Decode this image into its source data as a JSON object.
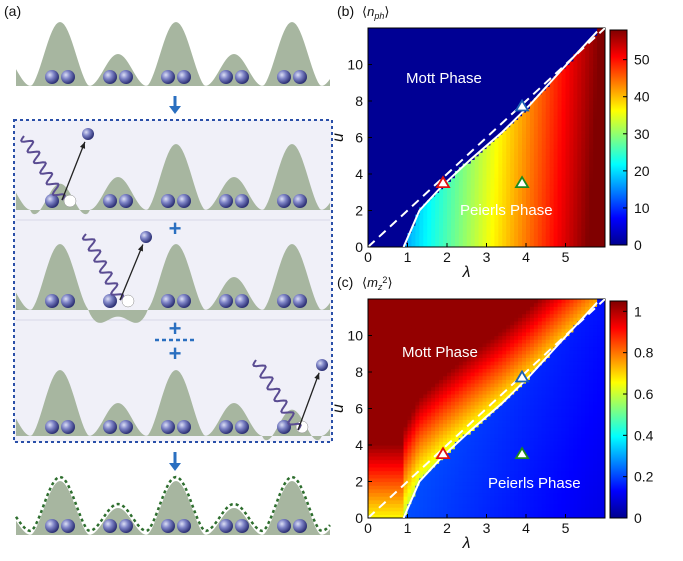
{
  "figure": {
    "panel_a_label": "(a)",
    "panel_b_label": "(b)",
    "panel_c_label": "(c)",
    "plus_sign": "+",
    "ellipsis": "⋯"
  },
  "chart_data": [
    {
      "type": "heatmap",
      "panel": "(b)",
      "title": "⟨n_ph⟩",
      "xlabel": "λ",
      "ylabel": "u",
      "xlim": [
        0,
        6
      ],
      "ylim": [
        0,
        12
      ],
      "x_ticks": [
        "0",
        "1",
        "2",
        "3",
        "4",
        "5"
      ],
      "y_ticks": [
        "0",
        "2",
        "4",
        "6",
        "8",
        "10"
      ],
      "colorbar_ticks": [
        "0",
        "10",
        "20",
        "30",
        "40",
        "50"
      ],
      "colorbar_range": [
        0,
        58
      ],
      "colormap": "jet",
      "regions": [
        "Mott Phase",
        "Peierls Phase"
      ],
      "dashed_line": {
        "x": [
          0,
          6
        ],
        "y": [
          0,
          12
        ]
      },
      "boundary_curve": {
        "x": [
          0.9,
          1.3,
          1.9,
          2.6,
          3.4,
          4.1,
          4.9,
          5.8
        ],
        "y": [
          0,
          2.0,
          3.4,
          4.8,
          6.3,
          7.8,
          9.7,
          11.8
        ]
      },
      "markers": [
        {
          "x": 1.9,
          "y": 3.5,
          "color": "#e01010"
        },
        {
          "x": 3.9,
          "y": 7.7,
          "color": "#1a5fb4"
        },
        {
          "x": 3.9,
          "y": 3.5,
          "color": "#1e8a1e"
        }
      ]
    },
    {
      "type": "heatmap",
      "panel": "(c)",
      "title": "⟨m_z²⟩",
      "xlabel": "λ",
      "ylabel": "u",
      "xlim": [
        0,
        6
      ],
      "ylim": [
        0,
        12
      ],
      "x_ticks": [
        "0",
        "1",
        "2",
        "3",
        "4",
        "5"
      ],
      "y_ticks": [
        "0",
        "2",
        "4",
        "6",
        "8",
        "10"
      ],
      "colorbar_ticks": [
        "0",
        "0.2",
        "0.4",
        "0.6",
        "0.8",
        "1"
      ],
      "colorbar_range": [
        0,
        1.05
      ],
      "colormap": "jet",
      "regions": [
        "Mott Phase",
        "Peierls Phase"
      ],
      "dashed_line": {
        "x": [
          0,
          6
        ],
        "y": [
          0,
          12
        ]
      },
      "boundary_curve": {
        "x": [
          0.9,
          1.3,
          1.9,
          2.6,
          3.4,
          4.1,
          4.9,
          5.8
        ],
        "y": [
          0,
          2.0,
          3.4,
          4.8,
          6.3,
          7.8,
          9.7,
          11.8
        ]
      },
      "markers": [
        {
          "x": 1.9,
          "y": 3.5,
          "color": "#e01010"
        },
        {
          "x": 3.9,
          "y": 7.7,
          "color": "#1a5fb4"
        },
        {
          "x": 3.9,
          "y": 3.5,
          "color": "#1e8a1e"
        }
      ]
    }
  ]
}
